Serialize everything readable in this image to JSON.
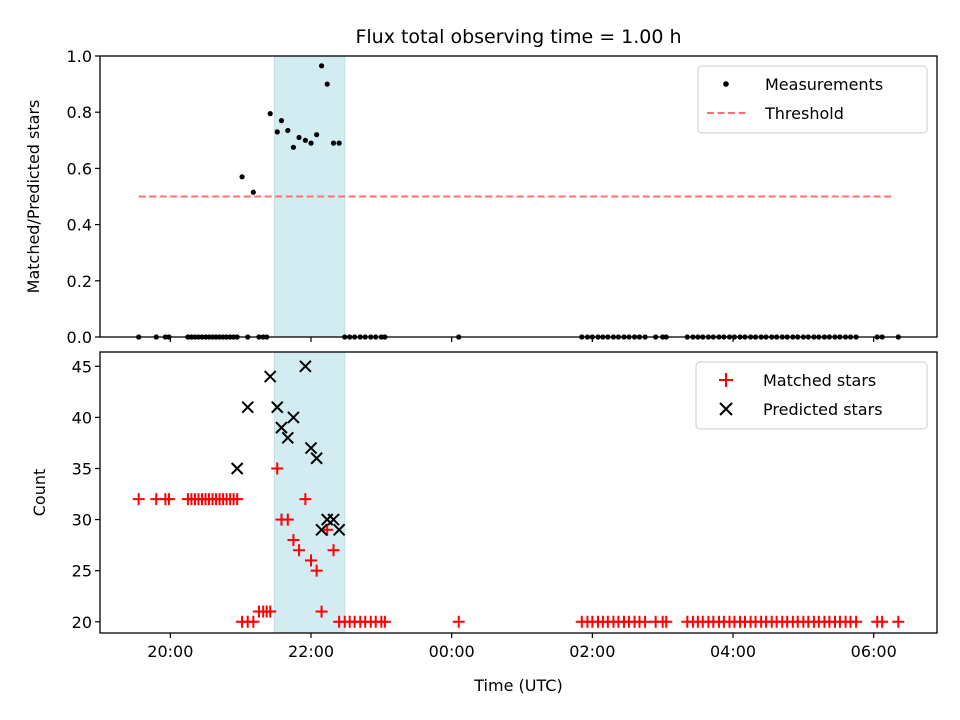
{
  "chart_data": [
    {
      "type": "scatter",
      "title": "Flux total observing time = 1.00 h",
      "ylabel": "Matched/Predicted stars",
      "ylim": [
        0,
        1.0
      ],
      "yticks": [
        0.0,
        0.2,
        0.4,
        0.6,
        0.8,
        1.0
      ],
      "ytick_labels": [
        "0.0",
        "0.2",
        "0.4",
        "0.6",
        "0.8",
        "1.0"
      ],
      "legend": {
        "position": "top-right",
        "entries": [
          "Measurements",
          "Threshold"
        ]
      },
      "highlight_span": {
        "x": [
          21.48,
          22.48
        ],
        "color": "#d2ecf2"
      },
      "threshold": {
        "name": "Threshold",
        "y": 0.5,
        "x": [
          19.55,
          30.3
        ],
        "color": "#ff7070"
      },
      "series": [
        {
          "name": "Measurements",
          "color": "#000000",
          "x": [
            19.55,
            19.8,
            19.93,
            19.98,
            20.25,
            20.3,
            20.35,
            20.4,
            20.45,
            20.5,
            20.55,
            20.6,
            20.65,
            20.7,
            20.75,
            20.8,
            20.85,
            20.9,
            20.95,
            21.02,
            21.1,
            21.18,
            21.26,
            21.32,
            21.37,
            21.42,
            21.52,
            21.58,
            21.67,
            21.75,
            21.83,
            21.92,
            22.0,
            22.08,
            22.15,
            22.23,
            22.32,
            22.4,
            22.48,
            22.55,
            22.62,
            22.7,
            22.77,
            22.85,
            22.92,
            23.0,
            23.05,
            24.1,
            25.85,
            25.93,
            26.0,
            26.08,
            26.15,
            26.22,
            26.3,
            26.37,
            26.45,
            26.52,
            26.6,
            26.67,
            26.75,
            26.9,
            27.0,
            27.05,
            27.35,
            27.43,
            27.5,
            27.57,
            27.65,
            27.72,
            27.8,
            27.87,
            27.95,
            28.02,
            28.1,
            28.17,
            28.25,
            28.32,
            28.4,
            28.47,
            28.55,
            28.62,
            28.7,
            28.77,
            28.85,
            28.92,
            29.0,
            29.07,
            29.15,
            29.22,
            29.3,
            29.37,
            29.45,
            29.52,
            29.6,
            29.67,
            29.75,
            30.05,
            30.12,
            30.35
          ],
          "y": [
            0,
            0,
            0,
            0,
            0,
            0,
            0,
            0,
            0,
            0,
            0,
            0,
            0,
            0,
            0,
            0,
            0,
            0,
            0,
            0.57,
            0,
            0.515,
            0,
            0,
            0,
            0.795,
            0.73,
            0.77,
            0.735,
            0.675,
            0.71,
            0.7,
            0.69,
            0.72,
            0.965,
            0.9,
            0.69,
            0.69,
            0,
            0,
            0,
            0,
            0,
            0,
            0,
            0,
            0,
            0,
            0,
            0,
            0,
            0,
            0,
            0,
            0,
            0,
            0,
            0,
            0,
            0,
            0,
            0,
            0,
            0,
            0,
            0,
            0,
            0,
            0,
            0,
            0,
            0,
            0,
            0,
            0,
            0,
            0,
            0,
            0,
            0,
            0,
            0,
            0,
            0,
            0,
            0,
            0,
            0,
            0,
            0,
            0,
            0,
            0,
            0,
            0,
            0,
            0,
            0,
            0,
            0
          ]
        }
      ]
    },
    {
      "type": "scatter",
      "xlabel": "Time (UTC)",
      "ylabel": "Count",
      "ylim": [
        18.9,
        46.4
      ],
      "yticks": [
        20,
        25,
        30,
        35,
        40,
        45
      ],
      "ytick_labels": [
        "20",
        "25",
        "30",
        "35",
        "40",
        "45"
      ],
      "xlim": [
        19.0,
        30.9
      ],
      "xticks": [
        20,
        22,
        24,
        26,
        28,
        30
      ],
      "xtick_labels": [
        "20:00",
        "22:00",
        "00:00",
        "02:00",
        "04:00",
        "06:00"
      ],
      "legend": {
        "position": "top-right",
        "entries": [
          "Matched stars",
          "Predicted stars"
        ]
      },
      "highlight_span": {
        "x": [
          21.48,
          22.48
        ],
        "color": "#d2ecf2"
      },
      "series": [
        {
          "name": "Matched stars",
          "color": "#ff0000",
          "marker": "plus",
          "x": [
            19.55,
            19.8,
            19.93,
            19.98,
            20.25,
            20.3,
            20.35,
            20.4,
            20.45,
            20.5,
            20.55,
            20.6,
            20.65,
            20.7,
            20.75,
            20.8,
            20.85,
            20.9,
            20.95,
            21.02,
            21.1,
            21.18,
            21.26,
            21.32,
            21.37,
            21.42,
            21.52,
            21.58,
            21.67,
            21.75,
            21.83,
            21.92,
            22.0,
            22.08,
            22.15,
            22.23,
            22.32,
            22.4,
            22.48,
            22.55,
            22.62,
            22.7,
            22.77,
            22.85,
            22.92,
            23.0,
            23.05,
            24.1,
            25.85,
            25.93,
            26.0,
            26.08,
            26.15,
            26.22,
            26.3,
            26.37,
            26.45,
            26.52,
            26.6,
            26.67,
            26.75,
            26.9,
            27.0,
            27.05,
            27.35,
            27.43,
            27.5,
            27.57,
            27.65,
            27.72,
            27.8,
            27.87,
            27.95,
            28.02,
            28.1,
            28.17,
            28.25,
            28.32,
            28.4,
            28.47,
            28.55,
            28.62,
            28.7,
            28.77,
            28.85,
            28.92,
            29.0,
            29.07,
            29.15,
            29.22,
            29.3,
            29.37,
            29.45,
            29.52,
            29.6,
            29.67,
            29.75,
            30.05,
            30.12,
            30.35
          ],
          "y": [
            32,
            32,
            32,
            32,
            32,
            32,
            32,
            32,
            32,
            32,
            32,
            32,
            32,
            32,
            32,
            32,
            32,
            32,
            32,
            20,
            20,
            20,
            21,
            21,
            21,
            21,
            35,
            30,
            30,
            28,
            27,
            32,
            26,
            25,
            21,
            29,
            27,
            20,
            20,
            20,
            20,
            20,
            20,
            20,
            20,
            20,
            20,
            20,
            20,
            20,
            20,
            20,
            20,
            20,
            20,
            20,
            20,
            20,
            20,
            20,
            20,
            20,
            20,
            20,
            20,
            20,
            20,
            20,
            20,
            20,
            20,
            20,
            20,
            20,
            20,
            20,
            20,
            20,
            20,
            20,
            20,
            20,
            20,
            20,
            20,
            20,
            20,
            20,
            20,
            20,
            20,
            20,
            20,
            20,
            20,
            20,
            20,
            20,
            20,
            20
          ]
        },
        {
          "name": "Predicted stars",
          "color": "#000000",
          "marker": "x",
          "x": [
            20.95,
            21.1,
            21.42,
            21.52,
            21.58,
            21.67,
            21.75,
            21.92,
            22.0,
            22.08,
            22.15,
            22.23,
            22.32,
            22.4
          ],
          "y": [
            35,
            41,
            44,
            41,
            39,
            38,
            40,
            45,
            37,
            36,
            29,
            30,
            30,
            29
          ]
        }
      ]
    }
  ]
}
